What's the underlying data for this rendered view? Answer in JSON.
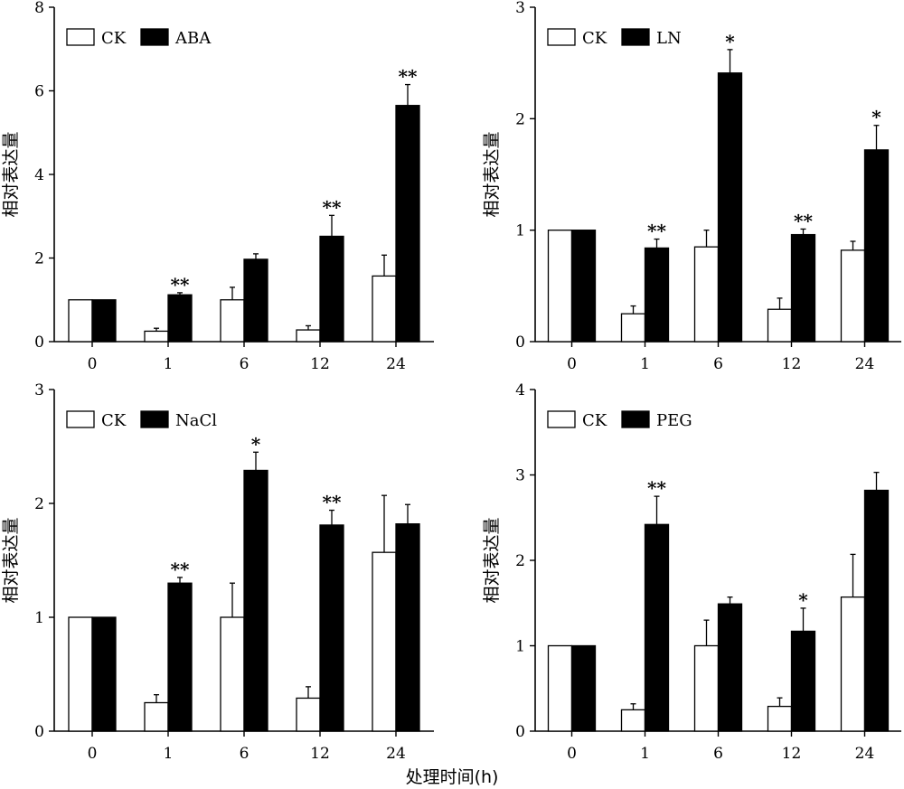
{
  "figure": {
    "shared_xlabel": "处理时间(h)"
  },
  "chart_data": [
    {
      "type": "bar",
      "ylabel": "相对表达量",
      "ylim": [
        0,
        8
      ],
      "yticks": [
        0,
        2,
        4,
        6,
        8
      ],
      "categories": [
        "0",
        "1",
        "6",
        "12",
        "24"
      ],
      "legend": "top-left",
      "series": [
        {
          "name": "CK",
          "color": "#ffffff",
          "values": [
            1.0,
            0.25,
            1.0,
            0.28,
            1.57
          ],
          "errors": [
            0.0,
            0.07,
            0.3,
            0.1,
            0.5
          ]
        },
        {
          "name": "ABA",
          "color": "#000000",
          "values": [
            1.0,
            1.12,
            1.97,
            2.52,
            5.65
          ],
          "errors": [
            0.0,
            0.05,
            0.13,
            0.5,
            0.5
          ]
        }
      ],
      "annotations": [
        {
          "category": "1",
          "series": 1,
          "text": "**"
        },
        {
          "category": "12",
          "series": 1,
          "text": "**"
        },
        {
          "category": "24",
          "series": 1,
          "text": "**"
        }
      ]
    },
    {
      "type": "bar",
      "ylabel": "相对表达量",
      "ylim": [
        0,
        3
      ],
      "yticks": [
        0,
        1,
        2,
        3
      ],
      "categories": [
        "0",
        "1",
        "6",
        "12",
        "24"
      ],
      "legend": "top-left",
      "series": [
        {
          "name": "CK",
          "color": "#ffffff",
          "values": [
            1.0,
            0.25,
            0.85,
            0.29,
            0.82
          ],
          "errors": [
            0.0,
            0.07,
            0.15,
            0.1,
            0.08
          ]
        },
        {
          "name": "LN",
          "color": "#000000",
          "values": [
            1.0,
            0.84,
            2.41,
            0.96,
            1.72
          ],
          "errors": [
            0.0,
            0.08,
            0.21,
            0.05,
            0.22
          ]
        }
      ],
      "annotations": [
        {
          "category": "1",
          "series": 1,
          "text": "**"
        },
        {
          "category": "6",
          "series": 1,
          "text": "*"
        },
        {
          "category": "12",
          "series": 1,
          "text": "**"
        },
        {
          "category": "24",
          "series": 1,
          "text": "*"
        }
      ]
    },
    {
      "type": "bar",
      "ylabel": "相对表达量",
      "ylim": [
        0,
        3
      ],
      "yticks": [
        0,
        1,
        2,
        3
      ],
      "categories": [
        "0",
        "1",
        "6",
        "12",
        "24"
      ],
      "legend": "top-left",
      "series": [
        {
          "name": "CK",
          "color": "#ffffff",
          "values": [
            1.0,
            0.25,
            1.0,
            0.29,
            1.57
          ],
          "errors": [
            0.0,
            0.07,
            0.3,
            0.1,
            0.5
          ]
        },
        {
          "name": "NaCl",
          "color": "#000000",
          "values": [
            1.0,
            1.3,
            2.29,
            1.81,
            1.82
          ],
          "errors": [
            0.0,
            0.05,
            0.16,
            0.13,
            0.17
          ]
        }
      ],
      "annotations": [
        {
          "category": "1",
          "series": 1,
          "text": "**"
        },
        {
          "category": "6",
          "series": 1,
          "text": "*"
        },
        {
          "category": "12",
          "series": 1,
          "text": "**"
        }
      ]
    },
    {
      "type": "bar",
      "ylabel": "相对表达量",
      "ylim": [
        0,
        4
      ],
      "yticks": [
        0,
        1,
        2,
        3,
        4
      ],
      "categories": [
        "0",
        "1",
        "6",
        "12",
        "24"
      ],
      "legend": "top-left",
      "series": [
        {
          "name": "CK",
          "color": "#ffffff",
          "values": [
            1.0,
            0.25,
            1.0,
            0.29,
            1.57
          ],
          "errors": [
            0.0,
            0.07,
            0.3,
            0.1,
            0.5
          ]
        },
        {
          "name": "PEG",
          "color": "#000000",
          "values": [
            1.0,
            2.42,
            1.49,
            1.17,
            2.82
          ],
          "errors": [
            0.0,
            0.33,
            0.08,
            0.27,
            0.21
          ]
        }
      ],
      "annotations": [
        {
          "category": "1",
          "series": 1,
          "text": "**"
        },
        {
          "category": "12",
          "series": 1,
          "text": "*"
        }
      ]
    }
  ]
}
